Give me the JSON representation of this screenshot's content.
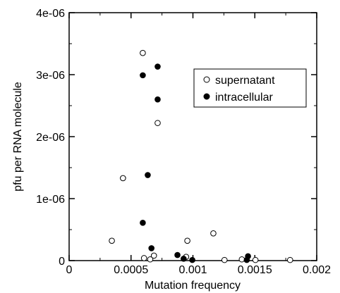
{
  "chart_data": {
    "type": "scatter",
    "title": "",
    "xlabel": "Mutation frequency",
    "ylabel": "pfu per RNA molecule",
    "xlim": [
      0,
      0.002
    ],
    "ylim": [
      0,
      4e-06
    ],
    "x_ticks": [
      0,
      0.0005,
      0.001,
      0.0015,
      0.002
    ],
    "x_tick_labels": [
      "0",
      "0.0005",
      "0.001",
      "0.0015",
      "0.002"
    ],
    "y_ticks": [
      0,
      1e-06,
      2e-06,
      3e-06,
      4e-06
    ],
    "y_tick_labels": [
      "0",
      "1e-06",
      "2e-06",
      "3e-06",
      "4e-06"
    ],
    "grid": false,
    "legend_position": "top-right",
    "series": [
      {
        "name": "supernatant",
        "marker": "open-circle",
        "color": "#000000",
        "points": [
          {
            "x": 0.000595,
            "y": 3.35e-06
          },
          {
            "x": 0.000715,
            "y": 2.22e-06
          },
          {
            "x": 0.000435,
            "y": 1.33e-06
          },
          {
            "x": 0.000345,
            "y": 3.2e-07
          },
          {
            "x": 0.000955,
            "y": 3.2e-07
          },
          {
            "x": 0.001165,
            "y": 4.4e-07
          },
          {
            "x": 0.000605,
            "y": 4e-08
          },
          {
            "x": 0.000685,
            "y": 8e-08
          },
          {
            "x": 0.000655,
            "y": 2e-08
          },
          {
            "x": 0.000945,
            "y": 6e-08
          },
          {
            "x": 0.001255,
            "y": 1e-08
          },
          {
            "x": 0.001395,
            "y": 2e-08
          },
          {
            "x": 0.001505,
            "y": 1e-08
          },
          {
            "x": 0.001785,
            "y": 1e-08
          }
        ]
      },
      {
        "name": "intracellular",
        "marker": "filled-circle",
        "color": "#000000",
        "points": [
          {
            "x": 0.000595,
            "y": 2.99e-06
          },
          {
            "x": 0.000715,
            "y": 3.13e-06
          },
          {
            "x": 0.000715,
            "y": 2.6e-06
          },
          {
            "x": 0.000635,
            "y": 1.38e-06
          },
          {
            "x": 0.000595,
            "y": 6.1e-07
          },
          {
            "x": 0.000665,
            "y": 2e-07
          },
          {
            "x": 0.000875,
            "y": 9e-08
          },
          {
            "x": 0.000925,
            "y": 3e-08
          },
          {
            "x": 0.000995,
            "y": 1e-08
          },
          {
            "x": 0.001445,
            "y": 7e-08
          },
          {
            "x": 0.001435,
            "y": 1e-08
          }
        ]
      }
    ]
  }
}
